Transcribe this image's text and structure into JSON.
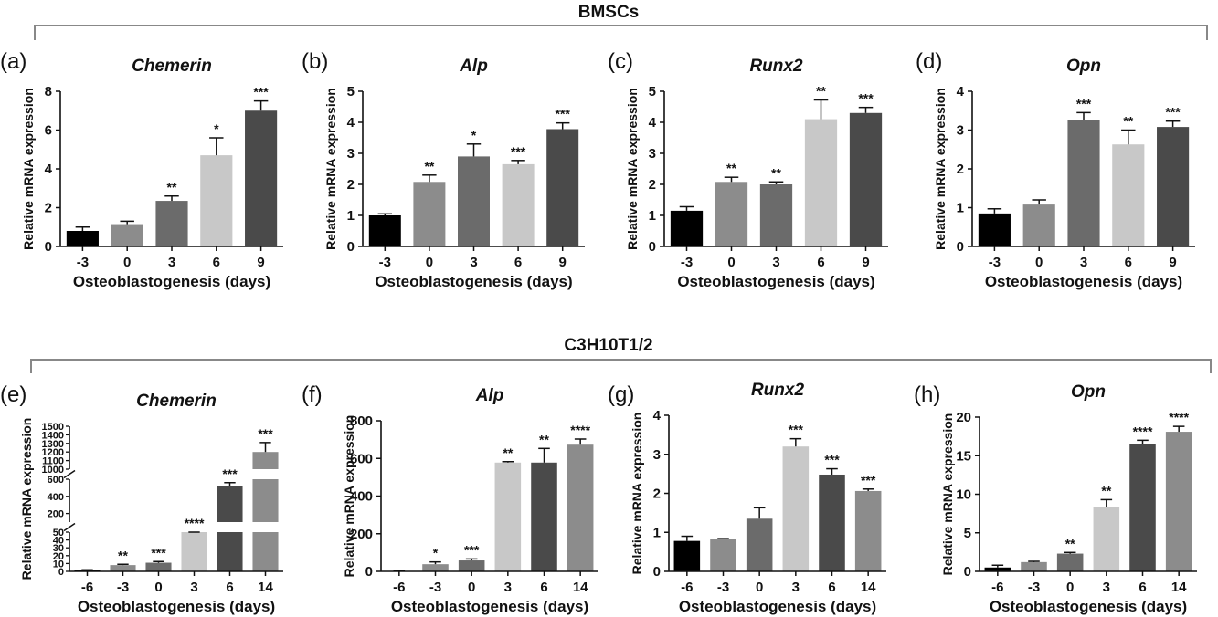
{
  "groups": [
    {
      "label": "BMSCs"
    },
    {
      "label": "C3H10T1/2"
    }
  ],
  "chart_data": [
    {
      "type": "bar",
      "panel": "(a)",
      "title": "Chemerin",
      "xlabel": "Osteoblastogenesis (days)",
      "ylabel": "Relative mRNA expression",
      "categories": [
        "-3",
        "0",
        "3",
        "6",
        "9"
      ],
      "values": [
        0.8,
        1.15,
        2.35,
        4.7,
        7.0
      ],
      "errors": [
        0.2,
        0.15,
        0.25,
        0.9,
        0.5
      ],
      "significance": [
        "",
        "",
        "**",
        "*",
        "***"
      ],
      "ylim": [
        0,
        8
      ],
      "yticks": [
        0,
        2,
        4,
        6,
        8
      ],
      "colors": [
        "#000000",
        "#8c8c8c",
        "#6b6b6b",
        "#c8c8c8",
        "#4a4a4a"
      ]
    },
    {
      "type": "bar",
      "panel": "(b)",
      "title": "Alp",
      "xlabel": "Osteoblastogenesis (days)",
      "ylabel": "Relative mRNA expression",
      "categories": [
        "-3",
        "0",
        "3",
        "6",
        "9"
      ],
      "values": [
        1.0,
        2.08,
        2.9,
        2.65,
        3.78
      ],
      "errors": [
        0.05,
        0.22,
        0.4,
        0.12,
        0.2
      ],
      "significance": [
        "",
        "**",
        "*",
        "***",
        "***"
      ],
      "ylim": [
        0,
        5
      ],
      "yticks": [
        0,
        1,
        2,
        3,
        4,
        5
      ],
      "colors": [
        "#000000",
        "#8c8c8c",
        "#6b6b6b",
        "#c8c8c8",
        "#4a4a4a"
      ]
    },
    {
      "type": "bar",
      "panel": "(c)",
      "title": "Runx2",
      "xlabel": "Osteoblastogenesis (days)",
      "ylabel": "Relative mRNA expression",
      "categories": [
        "-3",
        "0",
        "3",
        "6",
        "9"
      ],
      "values": [
        1.15,
        2.08,
        2.0,
        4.1,
        4.3
      ],
      "errors": [
        0.13,
        0.15,
        0.08,
        0.62,
        0.18
      ],
      "significance": [
        "",
        "**",
        "**",
        "**",
        "***"
      ],
      "ylim": [
        0,
        5
      ],
      "yticks": [
        0,
        1,
        2,
        3,
        4,
        5
      ],
      "colors": [
        "#000000",
        "#8c8c8c",
        "#6b6b6b",
        "#c8c8c8",
        "#4a4a4a"
      ]
    },
    {
      "type": "bar",
      "panel": "(d)",
      "title": "Opn",
      "xlabel": "Osteoblastogenesis (days)",
      "ylabel": "Relative mRNA expression",
      "categories": [
        "-3",
        "0",
        "3",
        "6",
        "9"
      ],
      "values": [
        0.85,
        1.08,
        3.27,
        2.63,
        3.08
      ],
      "errors": [
        0.12,
        0.12,
        0.18,
        0.37,
        0.15
      ],
      "significance": [
        "",
        "",
        "***",
        "**",
        "***"
      ],
      "ylim": [
        0,
        4
      ],
      "yticks": [
        0,
        1,
        2,
        3,
        4
      ],
      "colors": [
        "#000000",
        "#8c8c8c",
        "#6b6b6b",
        "#c8c8c8",
        "#4a4a4a"
      ]
    },
    {
      "type": "bar",
      "panel": "(e)",
      "title": "Chemerin",
      "xlabel": "Osteoblastogenesis (days)",
      "ylabel": "Relative mRNA expression",
      "categories": [
        "-6",
        "-3",
        "0",
        "3",
        "6",
        "14"
      ],
      "values": [
        1.5,
        8,
        11,
        80,
        520,
        1200
      ],
      "errors": [
        0.5,
        1,
        1.5,
        10,
        40,
        110
      ],
      "significance": [
        "",
        "**",
        "***",
        "****",
        "***",
        "***"
      ],
      "broken_axis": [
        {
          "range": [
            0,
            50
          ],
          "yticks": [
            0,
            10,
            20,
            30,
            40,
            50
          ],
          "ticklabels": [
            "0",
            "10",
            "20",
            "30",
            "40",
            "50"
          ]
        },
        {
          "range": [
            100,
            600
          ],
          "yticks": [
            200,
            400,
            600
          ],
          "ticklabels": [
            "200",
            "400",
            "600"
          ]
        },
        {
          "range": [
            1000,
            1500
          ],
          "yticks": [
            1000,
            1100,
            1200,
            1300,
            1400,
            1500
          ],
          "ticklabels": [
            "1000",
            "1100",
            "1200",
            "1300",
            "1400",
            "1500"
          ]
        }
      ],
      "colors": [
        "#000000",
        "#8c8c8c",
        "#6b6b6b",
        "#c8c8c8",
        "#4a4a4a",
        "#8c8c8c"
      ]
    },
    {
      "type": "bar",
      "panel": "(f)",
      "title": "Alp",
      "xlabel": "Osteoblastogenesis (days)",
      "ylabel": "Relative mRNA expression",
      "categories": [
        "-6",
        "-3",
        "0",
        "3",
        "6",
        "14"
      ],
      "values": [
        2,
        38,
        58,
        578,
        578,
        673
      ],
      "errors": [
        1,
        12,
        8,
        5,
        75,
        30
      ],
      "significance": [
        "",
        "*",
        "***",
        "**",
        "**",
        "****"
      ],
      "ylim": [
        0,
        800
      ],
      "yticks": [
        0,
        200,
        400,
        600,
        800
      ],
      "colors": [
        "#000000",
        "#8c8c8c",
        "#6b6b6b",
        "#c8c8c8",
        "#4a4a4a",
        "#8c8c8c"
      ]
    },
    {
      "type": "bar",
      "panel": "(g)",
      "title": "Runx2",
      "xlabel": "Osteoblastogenesis (days)",
      "ylabel": "Relative mRNA expression",
      "categories": [
        "-6",
        "-3",
        "0",
        "3",
        "6",
        "14"
      ],
      "values": [
        0.78,
        0.82,
        1.35,
        3.2,
        2.48,
        2.06
      ],
      "errors": [
        0.12,
        0.02,
        0.28,
        0.2,
        0.15,
        0.05
      ],
      "significance": [
        "",
        "",
        "",
        "***",
        "***",
        "***"
      ],
      "ylim": [
        0,
        4
      ],
      "yticks": [
        0,
        1,
        2,
        3,
        4
      ],
      "colors": [
        "#000000",
        "#8c8c8c",
        "#6b6b6b",
        "#c8c8c8",
        "#4a4a4a",
        "#8c8c8c"
      ]
    },
    {
      "type": "bar",
      "panel": "(h)",
      "title": "Opn",
      "xlabel": "Osteoblastogenesis (days)",
      "ylabel": "Relative mRNA expression",
      "categories": [
        "-6",
        "-3",
        "0",
        "3",
        "6",
        "14"
      ],
      "values": [
        0.5,
        1.2,
        2.3,
        8.3,
        16.5,
        18.1
      ],
      "errors": [
        0.3,
        0.1,
        0.15,
        1.0,
        0.5,
        0.7
      ],
      "significance": [
        "",
        "",
        "**",
        "**",
        "****",
        "****"
      ],
      "ylim": [
        0,
        20
      ],
      "yticks": [
        0,
        5,
        10,
        15,
        20
      ],
      "colors": [
        "#000000",
        "#8c8c8c",
        "#6b6b6b",
        "#c8c8c8",
        "#4a4a4a",
        "#8c8c8c"
      ]
    }
  ]
}
